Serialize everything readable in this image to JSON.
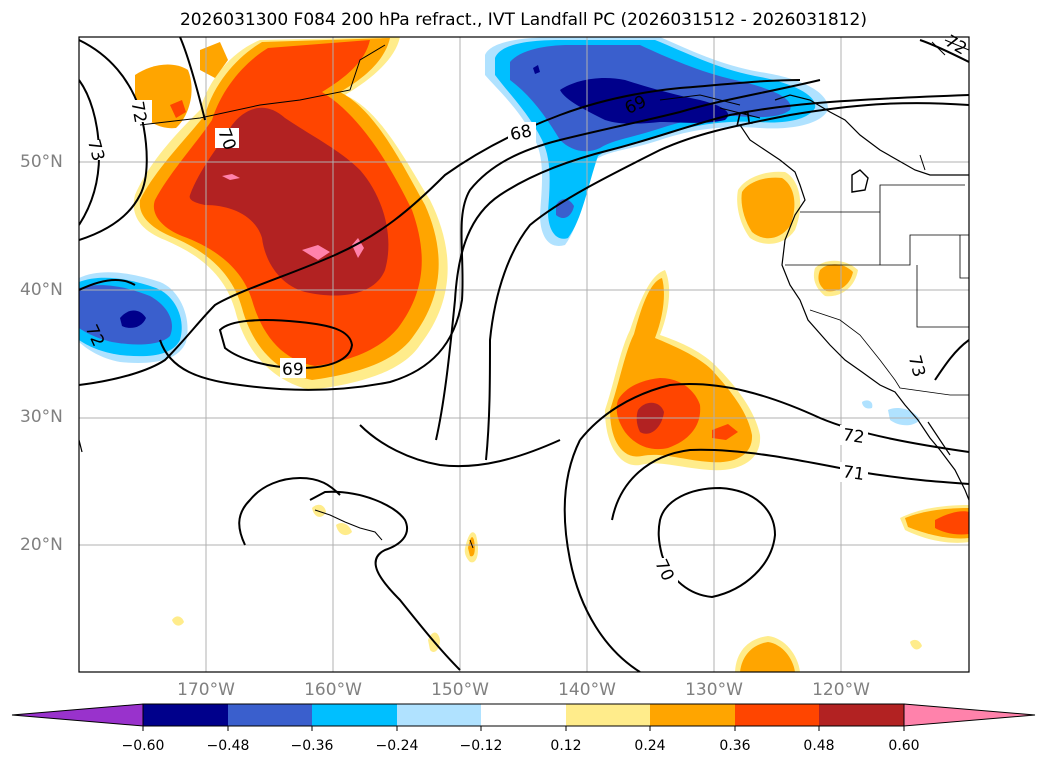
{
  "title": "2026031300 F084 200 hPa refract., IVT Landfall PC (2026031512 - 2026031812)",
  "map": {
    "lat_labels": [
      "50°N",
      "40°N",
      "30°N",
      "20°N"
    ],
    "lon_labels": [
      "170°W",
      "160°W",
      "150°W",
      "140°W",
      "130°W",
      "120°W"
    ],
    "contour_labels": [
      "72",
      "73",
      "70",
      "69",
      "68",
      "69",
      "71",
      "72",
      "71",
      "70",
      "72",
      "73",
      "72"
    ]
  },
  "colorbar": {
    "colors": [
      "#9932cc",
      "#00008b",
      "#3a5fcd",
      "#00bfff",
      "#b0e2ff",
      "#ffffff",
      "#ffec8b",
      "#ffa500",
      "#ff4500",
      "#b22222",
      "#ff82ab"
    ],
    "tick_labels": [
      "−0.60",
      "−0.48",
      "−0.36",
      "−0.24",
      "−0.12",
      "0.12",
      "0.24",
      "0.36",
      "0.48",
      "0.60"
    ]
  }
}
